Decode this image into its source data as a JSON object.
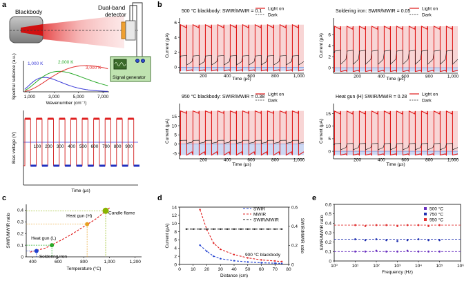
{
  "panel_labels": {
    "a": "a",
    "b": "b",
    "c": "c",
    "d": "d",
    "e": "e"
  },
  "panel_a": {
    "schematic": {
      "blackbody": "Blackbody",
      "detector_line1": "Dual-band",
      "detector_line2": "detector",
      "generator": "Signal generator"
    },
    "spectrum": {
      "ylabel": "Spectral radiance (a.u.)",
      "xlabel": "Wavenumber (cm⁻¹)",
      "xticks": [
        "1,000",
        "3,000",
        "5,000",
        "7,000"
      ],
      "series": [
        {
          "name": "1,000 K",
          "color": "#3a3ad8",
          "peak_x": 2200
        },
        {
          "name": "2,000 K",
          "color": "#2aaa2a",
          "peak_x": 3400
        },
        {
          "name": "3,000 K",
          "color": "#e23030",
          "peak_x": 5600
        }
      ]
    },
    "bias": {
      "ylabel": "Bias voltage (V)",
      "xlabel": "Time (μs)",
      "xticks": [
        "100",
        "200",
        "300",
        "400",
        "500",
        "600",
        "700",
        "800",
        "900"
      ],
      "pulses": 10
    }
  },
  "panel_b": {
    "subplots": [
      {
        "title": "500 °C blackbody: SWIR/MWIR = 0.1",
        "ylabel": "Current (μA)",
        "xlabel": "Time (μs)",
        "yticks": [
          "6",
          "4",
          "2",
          "0"
        ],
        "xticks": [
          "200",
          "400",
          "600",
          "800",
          "1,000"
        ],
        "high": 5.7,
        "low": -0.5,
        "dark": 1.5,
        "ymin": -0.8,
        "ymax": 6.6
      },
      {
        "title": "Soldering iron: SWIR/MWIR = 0.05",
        "ylabel": "Current (μA)",
        "xlabel": "Time (μs)",
        "yticks": [
          "6",
          "4",
          "2",
          "0"
        ],
        "xticks": [
          "200",
          "400",
          "600",
          "800",
          "1,000"
        ],
        "high": 7.5,
        "low": -0.7,
        "dark": 3,
        "ymin": -1,
        "ymax": 9
      },
      {
        "title": "950 °C blackbody: SWIR/MWIR = 0.38",
        "ylabel": "Current (μA)",
        "xlabel": "Time (μs)",
        "yticks": [
          "15",
          "10",
          "5",
          "0",
          "-5"
        ],
        "xticks": [
          "200",
          "400",
          "600",
          "800",
          "1,000"
        ],
        "high": 18,
        "low": -6,
        "dark": 2,
        "ymin": -8,
        "ymax": 22
      },
      {
        "title": "Heat gun (H) SWIR/MWIR = 0.28",
        "ylabel": "Current (μA)",
        "xlabel": "Time (μs)",
        "yticks": [
          "15",
          "10",
          "5",
          "0"
        ],
        "xticks": [
          "200",
          "400",
          "600",
          "800",
          "1,000"
        ],
        "high": 16,
        "low": -1.5,
        "dark": 3,
        "ymin": -3,
        "ymax": 19
      }
    ],
    "legend": {
      "light_on": "Light on",
      "dark": "Dark"
    }
  },
  "chart_data": [
    {
      "type": "scatter",
      "panel": "c",
      "xlabel": "Temperature (°C)",
      "ylabel": "SWIR/MWIR ratio",
      "xlim": [
        350,
        1250
      ],
      "ylim": [
        0,
        0.45
      ],
      "xticks": [
        "400",
        "600",
        "800",
        "1,000",
        "1,200"
      ],
      "yticks": [
        "0",
        "0.1",
        "0.2",
        "0.3",
        "0.4"
      ],
      "points": [
        {
          "label": "Soldering iron",
          "x": 430,
          "y": 0.05,
          "color": "#1f3fd0"
        },
        {
          "label": "Heat gun (L)",
          "x": 550,
          "y": 0.1,
          "color": "#2aaa2a"
        },
        {
          "label": "Heat gun (H)",
          "x": 825,
          "y": 0.28,
          "color": "#e8a020"
        },
        {
          "label": "Candle flame",
          "x": 970,
          "y": 0.395,
          "color": "#8ab400"
        }
      ],
      "fit": [
        [
          380,
          0.04
        ],
        [
          500,
          0.075
        ],
        [
          600,
          0.13
        ],
        [
          700,
          0.19
        ],
        [
          800,
          0.26
        ],
        [
          900,
          0.33
        ],
        [
          1000,
          0.42
        ]
      ]
    },
    {
      "type": "line",
      "panel": "d",
      "xlabel": "Distance (cm)",
      "ylabel": "Current (μA)",
      "y2label": "SWIR/MWIR ratio",
      "xlim": [
        0,
        80
      ],
      "ylim": [
        0,
        14
      ],
      "y2lim": [
        0,
        0.6
      ],
      "xticks": [
        "0",
        "10",
        "20",
        "30",
        "40",
        "50",
        "60",
        "70",
        "80"
      ],
      "yticks": [
        "0",
        "2",
        "4",
        "6",
        "8",
        "10",
        "12",
        "14"
      ],
      "y2ticks": [
        "0",
        "0.2",
        "0.4",
        "0.6"
      ],
      "annotation": "900 °C blackbody",
      "series": [
        {
          "name": "SWIR",
          "color": "#2040d0",
          "x": [
            15,
            20,
            25,
            30,
            40,
            50,
            60,
            70,
            75
          ],
          "y": [
            4.7,
            3.2,
            2.0,
            1.4,
            0.9,
            0.6,
            0.4,
            0.3,
            0.25
          ]
        },
        {
          "name": "MWIR",
          "color": "#e02020",
          "x": [
            15,
            20,
            25,
            30,
            40,
            50,
            60,
            70,
            75
          ],
          "y": [
            13.4,
            8.5,
            5.2,
            3.7,
            2.4,
            1.6,
            1.1,
            0.85,
            0.7
          ]
        },
        {
          "name": "SWIR/MWIR",
          "color": "#222222",
          "axis": "right",
          "x": [
            5,
            10,
            15,
            20,
            25,
            30,
            35,
            40,
            45,
            50,
            55,
            60,
            65,
            70,
            75
          ],
          "y": [
            0.37,
            0.37,
            0.37,
            0.37,
            0.37,
            0.37,
            0.37,
            0.37,
            0.37,
            0.37,
            0.37,
            0.37,
            0.37,
            0.37,
            0.37
          ]
        }
      ]
    },
    {
      "type": "scatter",
      "panel": "e",
      "xlabel": "Frequency (Hz)",
      "ylabel": "SWIR/MWIR ratio",
      "xscale": "log",
      "xlim": [
        1,
        1000000
      ],
      "ylim": [
        0,
        0.6
      ],
      "xticks": [
        "10⁰",
        "10¹",
        "10²",
        "10³",
        "10⁴",
        "10⁵",
        "10⁶"
      ],
      "yticks": [
        "0",
        "0.1",
        "0.2",
        "0.3",
        "0.4",
        "0.5",
        "0.6"
      ],
      "series": [
        {
          "name": "500 °C",
          "color": "#6a30c0",
          "ref": 0.1,
          "x": [
            10,
            30,
            100,
            300,
            1000,
            3000,
            10000,
            30000,
            100000
          ],
          "y": [
            0.1,
            0.1,
            0.11,
            0.1,
            0.1,
            0.11,
            0.1,
            0.1,
            0.1
          ]
        },
        {
          "name": "750 °C",
          "color": "#2030b0",
          "ref": 0.23,
          "x": [
            10,
            30,
            100,
            300,
            1000,
            3000,
            10000,
            30000,
            100000
          ],
          "y": [
            0.23,
            0.22,
            0.23,
            0.22,
            0.21,
            0.22,
            0.23,
            0.22,
            0.22
          ]
        },
        {
          "name": "950 °C",
          "color": "#e03030",
          "ref": 0.38,
          "x": [
            10,
            30,
            100,
            300,
            1000,
            3000,
            10000,
            30000,
            100000
          ],
          "y": [
            0.38,
            0.37,
            0.38,
            0.38,
            0.37,
            0.38,
            0.38,
            0.37,
            0.38
          ]
        }
      ]
    }
  ]
}
